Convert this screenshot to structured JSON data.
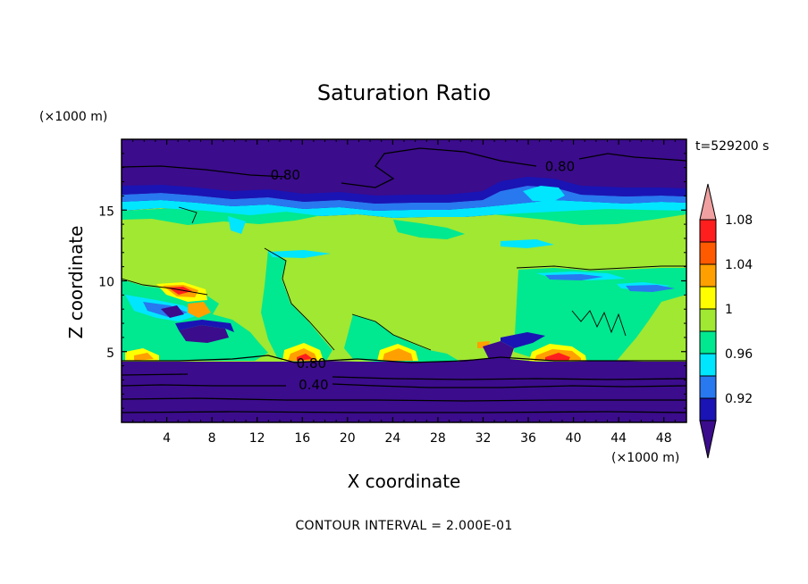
{
  "chart_data": {
    "type": "heatmap",
    "title": "Saturation Ratio",
    "xlabel": "X coordinate",
    "ylabel": "Z coordinate",
    "x_unit": "(×1000 m)",
    "y_unit": "(×1000 m)",
    "time_label": "t=529200 s",
    "footer": "CONTOUR INTERVAL = 2.000E-01",
    "xlim": [
      0,
      50
    ],
    "ylim": [
      0,
      20
    ],
    "x_ticks": [
      4,
      8,
      12,
      16,
      20,
      24,
      28,
      32,
      36,
      40,
      44,
      48
    ],
    "y_ticks": [
      5,
      10,
      15
    ],
    "colorbar": {
      "levels": [
        0.92,
        0.94,
        0.96,
        0.98,
        1.0,
        1.02,
        1.04,
        1.06,
        1.08,
        1.1
      ],
      "labels": [
        "0.92",
        "0.96",
        "1",
        "1.04",
        "1.08"
      ],
      "label_values": [
        0.92,
        0.96,
        1.0,
        1.04,
        1.08
      ],
      "colors": [
        "#3b0c8c",
        "#1a14b4",
        "#2878f0",
        "#00e6ff",
        "#00e890",
        "#a0e832",
        "#ffff00",
        "#ffa000",
        "#ff5a00",
        "#ff1e1e",
        "#f0a0a0"
      ],
      "extend": "both"
    },
    "contour_labels": [
      {
        "text": "0.80",
        "x": 14.5,
        "y": 17.4
      },
      {
        "text": "0.80",
        "x": 38.8,
        "y": 18.0
      },
      {
        "text": "0.80",
        "x": 16.8,
        "y": 4.1
      },
      {
        "text": "0.40",
        "x": 17.0,
        "y": 2.6
      }
    ]
  }
}
